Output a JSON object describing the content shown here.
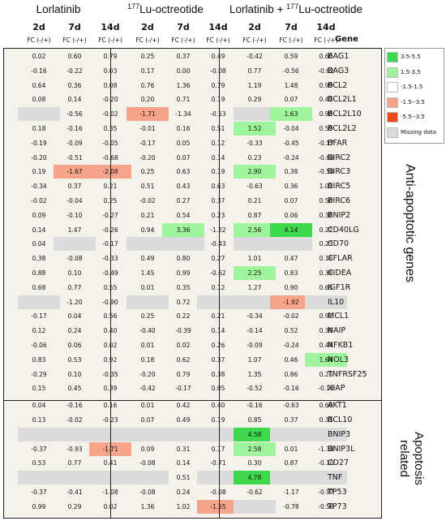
{
  "header": {
    "groups": [
      {
        "pre": "Lorlatinib",
        "sup": "",
        "post": ""
      },
      {
        "pre": "",
        "sup": "177",
        "post": "Lu-octreotide"
      },
      {
        "pre": "Lorlatinib + ",
        "sup": "177",
        "post": "Lu-octreotide"
      }
    ],
    "days": [
      "2d",
      "7d",
      "14d"
    ],
    "fc_label": "FC (-/+)",
    "gene_label": "Gene"
  },
  "legend": [
    {
      "label": "3.5-5.5",
      "color": "#3ed84e"
    },
    {
      "label": "1.5-3.5",
      "color": "#9ef39c"
    },
    {
      "label": "-1.5-1.5",
      "color": "#ffffff"
    },
    {
      "label": "-1.5--3.5",
      "color": "#f6a48a"
    },
    {
      "label": "-5.5--3.5",
      "color": "#f24a16"
    },
    {
      "label": "Missing data",
      "color": "#dcdcdc"
    }
  ],
  "sections": [
    {
      "label_line1": "Anti-apoptotic genes",
      "label_line2": ""
    },
    {
      "label_line1": "Apoptosis",
      "label_line2": "related"
    }
  ],
  "rows": [
    {
      "gene": "BAG1",
      "v": [
        "0.02",
        "0.60",
        "0.79",
        "0.25",
        "0.37",
        "0.49",
        "-0.42",
        "0.59",
        "0.60"
      ]
    },
    {
      "gene": "BAG3",
      "v": [
        "-0.16",
        "-0.22",
        "0.03",
        "0.17",
        "0.00",
        "-0.08",
        "0.77",
        "-0.56",
        "-0.62"
      ]
    },
    {
      "gene": "BCL2",
      "v": [
        "0.64",
        "0.36",
        "0.08",
        "0.76",
        "1.36",
        "0.79",
        "1.19",
        "1.48",
        "0.99"
      ]
    },
    {
      "gene": "BCL2L1",
      "v": [
        "0.08",
        "0.14",
        "-0.20",
        "0.20",
        "0.71",
        "0.19",
        "0.29",
        "0.07",
        "0.42"
      ]
    },
    {
      "gene": "BCL2L10",
      "v": [
        "",
        "-0.56",
        "-0.02",
        "-1.71",
        "-1.34",
        "-0.53",
        "",
        "1.63",
        "0.98"
      ]
    },
    {
      "gene": "BCL2L2",
      "v": [
        "0.18",
        "-0.16",
        "0.35",
        "-0.01",
        "0.16",
        "0.51",
        "1.52",
        "-0.04",
        "0.59"
      ]
    },
    {
      "gene": "BFAR",
      "v": [
        "-0.19",
        "-0.09",
        "-0.05",
        "-0.17",
        "0.05",
        "0.12",
        "-0.33",
        "-0.45",
        "-0.17"
      ]
    },
    {
      "gene": "BIRC2",
      "v": [
        "-0.20",
        "-0.51",
        "-0.68",
        "-0.20",
        "0.07",
        "0.14",
        "0.23",
        "-0.24",
        "-0.60"
      ]
    },
    {
      "gene": "BIRC3",
      "v": [
        "0.19",
        "-1.67",
        "-2.08",
        "0.25",
        "0.63",
        "0.19",
        "2.90",
        "0.38",
        "-0.50"
      ]
    },
    {
      "gene": "BIRC5",
      "v": [
        "-0.34",
        "0.37",
        "0.21",
        "0.51",
        "0.43",
        "0.63",
        "-0.63",
        "0.36",
        "1.02"
      ]
    },
    {
      "gene": "BIRC6",
      "v": [
        "-0.02",
        "-0.04",
        "0.25",
        "-0.02",
        "0.27",
        "0.37",
        "0.21",
        "0.07",
        "0.50"
      ]
    },
    {
      "gene": "BNIP2",
      "v": [
        "0.09",
        "-0.10",
        "-0.27",
        "0.21",
        "0.54",
        "0.23",
        "0.87",
        "0.06",
        "0.38"
      ]
    },
    {
      "gene": "CD40LG",
      "v": [
        "0.14",
        "1.47",
        "-0.26",
        "0.94",
        "3.36",
        "-1.22",
        "2.56",
        "4.14",
        "0.22"
      ]
    },
    {
      "gene": "CD70",
      "v": [
        "0.04",
        "",
        "-0.17",
        "",
        "",
        "-0.43",
        "",
        "",
        "0.23"
      ]
    },
    {
      "gene": "CFLAR",
      "v": [
        "0.38",
        "-0.08",
        "-0.33",
        "0.49",
        "0.80",
        "0.27",
        "1.01",
        "0.47",
        "0.16"
      ]
    },
    {
      "gene": "CIDEA",
      "v": [
        "0.88",
        "0.10",
        "-0.49",
        "1.45",
        "0.99",
        "-0.62",
        "2.25",
        "0.83",
        "0.38"
      ]
    },
    {
      "gene": "IGF1R",
      "v": [
        "0.68",
        "0.77",
        "0.55",
        "0.01",
        "0.35",
        "0.12",
        "1.27",
        "0.90",
        "0.65"
      ]
    },
    {
      "gene": "IL10",
      "v": [
        "",
        "-1.20",
        "-0.90",
        "",
        "0.72",
        "",
        "",
        "-1.92",
        ""
      ]
    },
    {
      "gene": "MCL1",
      "v": [
        "-0.17",
        "0.04",
        "0.56",
        "0.25",
        "0.22",
        "0.21",
        "-0.34",
        "-0.02",
        "0.92"
      ]
    },
    {
      "gene": "NAIP",
      "v": [
        "0.12",
        "0.24",
        "0.40",
        "-0.40",
        "-0.39",
        "0.14",
        "-0.14",
        "0.52",
        "0.39"
      ]
    },
    {
      "gene": "NFKB1",
      "v": [
        "-0.06",
        "0.06",
        "0.02",
        "0.01",
        "0.02",
        "0.26",
        "-0.09",
        "-0.24",
        "0.44"
      ]
    },
    {
      "gene": "NOL3",
      "v": [
        "0.83",
        "0.53",
        "0.92",
        "0.18",
        "0.62",
        "0.37",
        "1.07",
        "0.46",
        "1.64"
      ]
    },
    {
      "gene": "TNFRSF25",
      "v": [
        "-0.29",
        "0.10",
        "-0.35",
        "-0.20",
        "0.79",
        "0.38",
        "1.35",
        "0.86",
        "0.25"
      ]
    },
    {
      "gene": "XIAP",
      "v": [
        "0.15",
        "0.45",
        "0.39",
        "-0.42",
        "-0.17",
        "0.05",
        "-0.52",
        "-0.16",
        "-0.18"
      ]
    },
    {
      "gene": "AKT1",
      "v": [
        "0.04",
        "-0.16",
        "0.16",
        "0.01",
        "0.42",
        "0.40",
        "-0.16",
        "-0.63",
        "0.60"
      ]
    },
    {
      "gene": "BCL10",
      "v": [
        "0.13",
        "-0.02",
        "-0.23",
        "0.07",
        "0.49",
        "0.19",
        "0.85",
        "0.37",
        "0.31"
      ]
    },
    {
      "gene": "BNIP3",
      "v": [
        "",
        "",
        "",
        "",
        "",
        "",
        "4.58",
        "",
        ""
      ]
    },
    {
      "gene": "BNIP3L",
      "v": [
        "-0.37",
        "-0.93",
        "-1.71",
        "0.09",
        "0.31",
        "0.17",
        "2.58",
        "0.01",
        "-1.38"
      ]
    },
    {
      "gene": "CD27",
      "v": [
        "0.53",
        "0.77",
        "0.41",
        "-0.08",
        "0.14",
        "-0.71",
        "0.30",
        "0.87",
        "-0.10"
      ]
    },
    {
      "gene": "TNF",
      "v": [
        "",
        "",
        "",
        "",
        "0.51",
        "",
        "4.78",
        "",
        ""
      ]
    },
    {
      "gene": "TP53",
      "v": [
        "-0.37",
        "-0.41",
        "-1.08",
        "-0.08",
        "0.24",
        "-0.08",
        "-0.62",
        "-1.17",
        "-0.97"
      ]
    },
    {
      "gene": "TP73",
      "v": [
        "0.99",
        "0.29",
        "0.02",
        "1.36",
        "1.02",
        "-1.55",
        "",
        "-0.78",
        "-0.56"
      ]
    }
  ]
}
